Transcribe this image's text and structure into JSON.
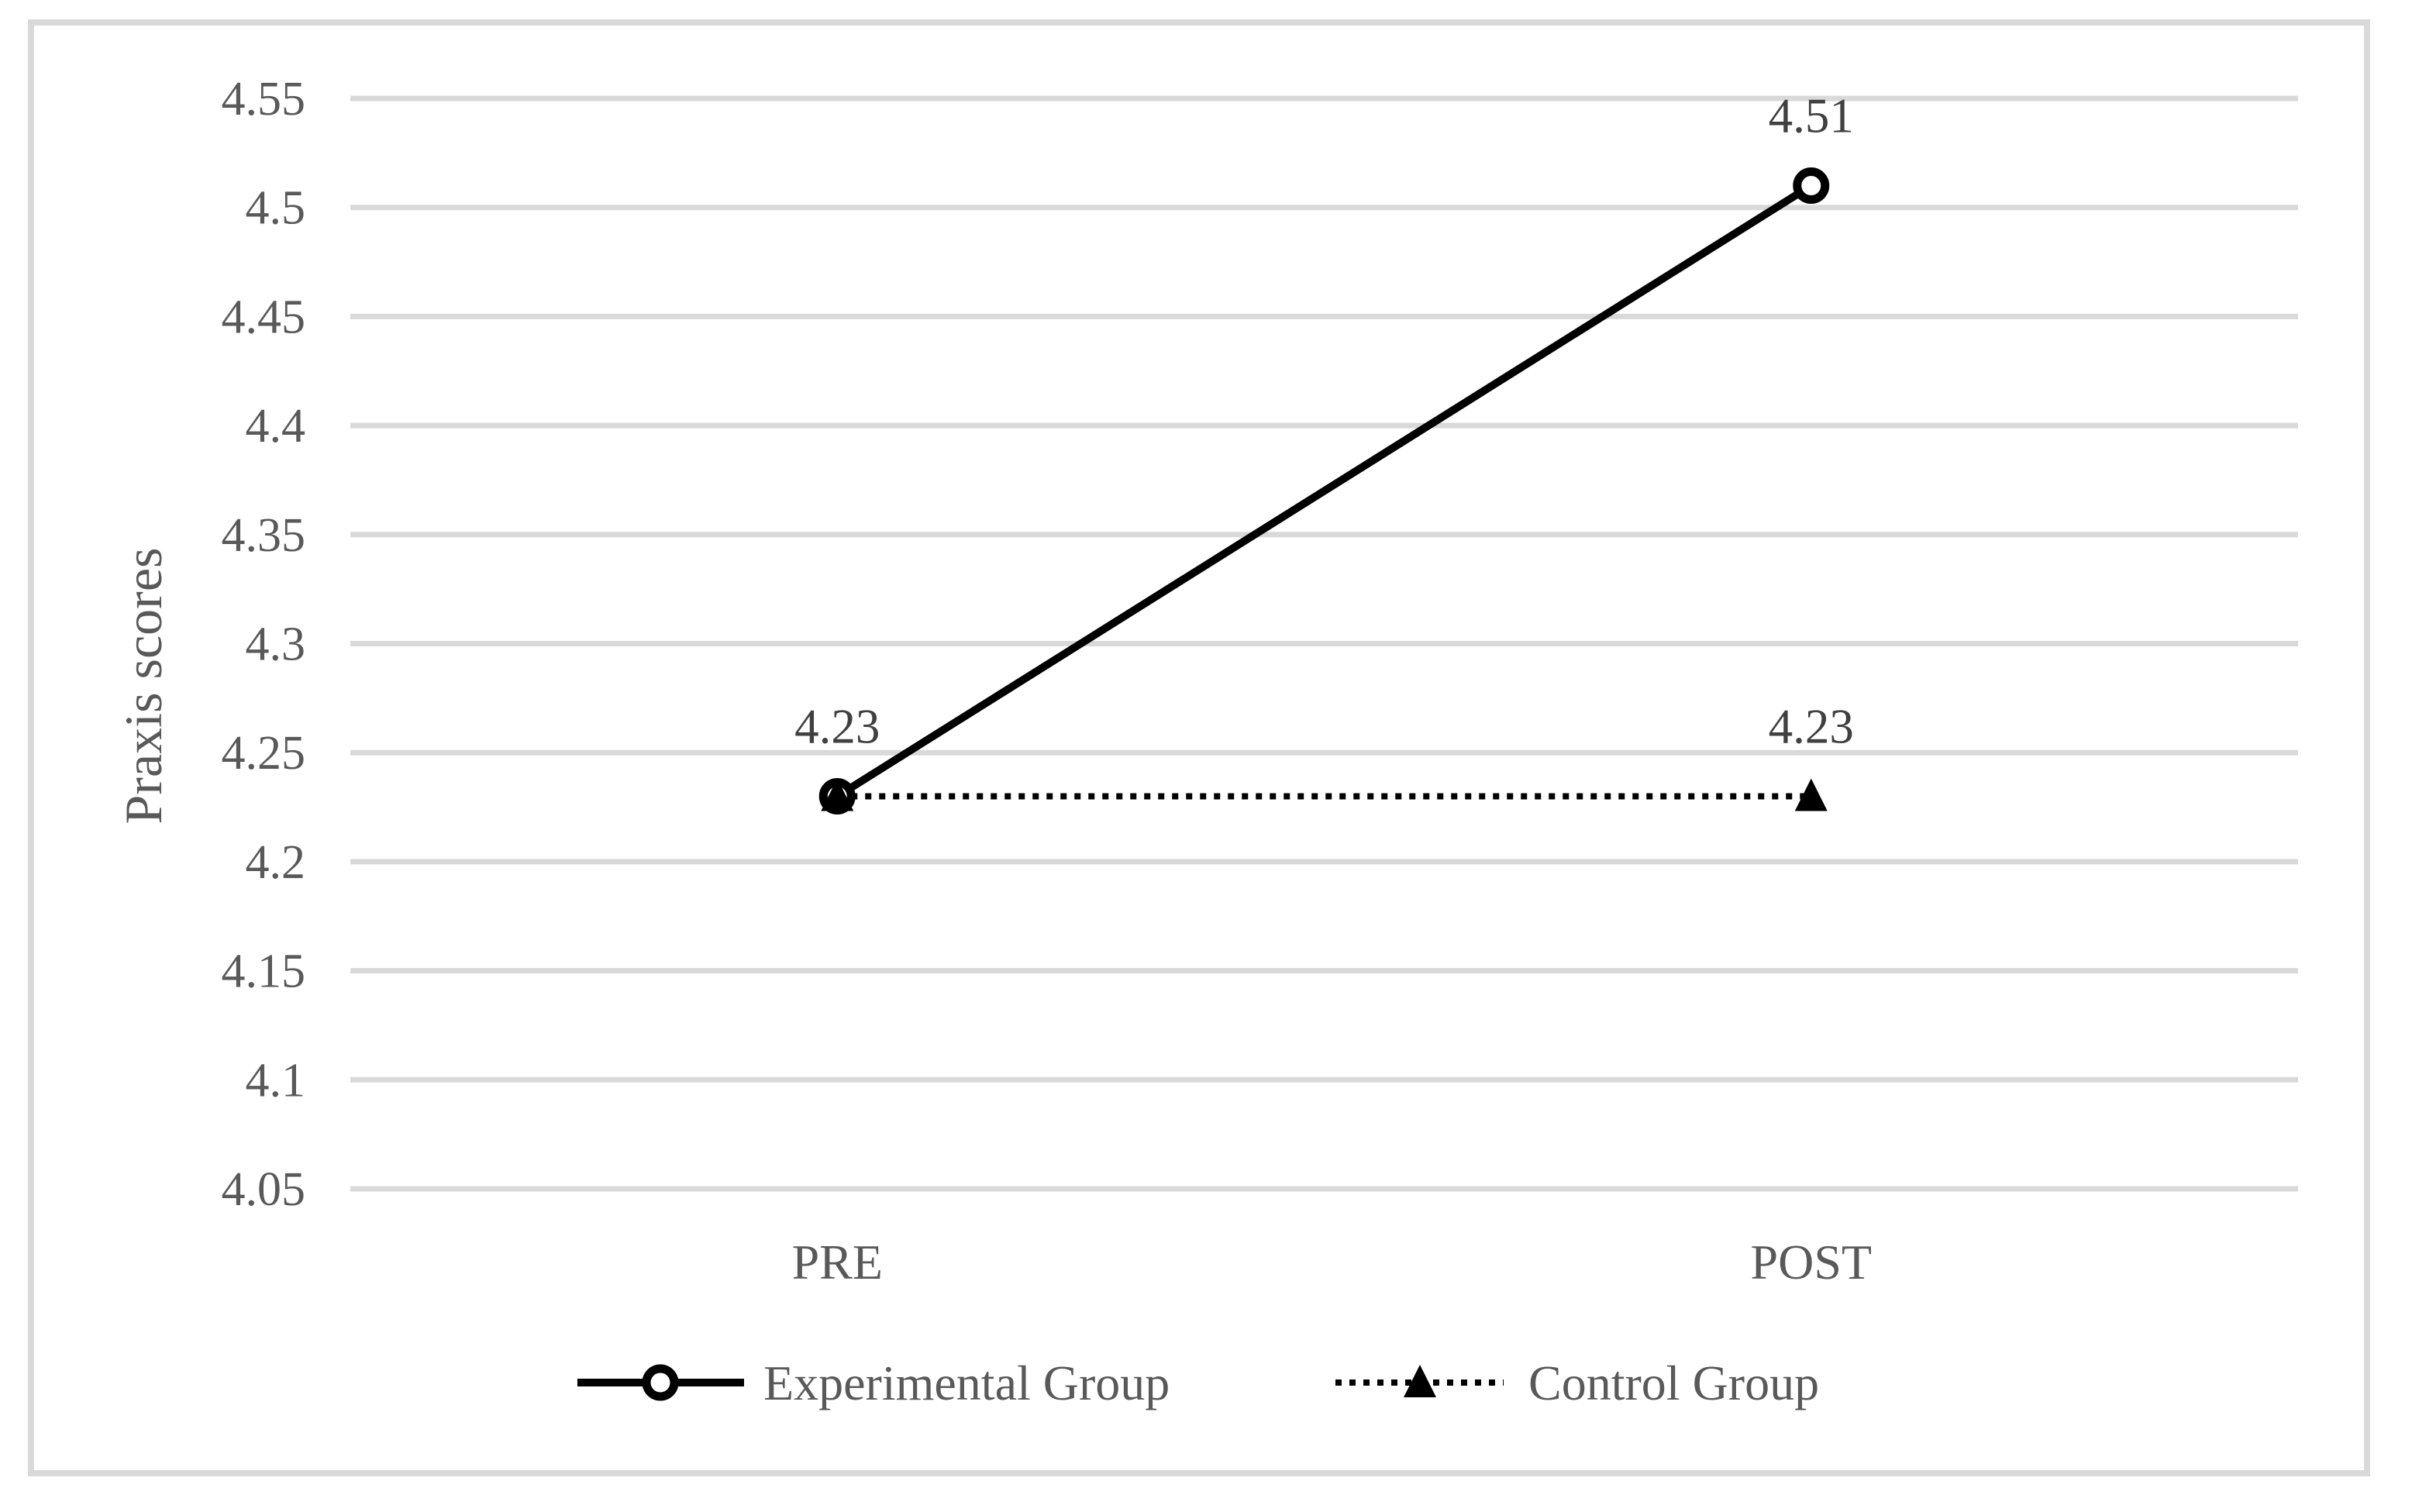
{
  "chart_data": {
    "type": "line",
    "title": "",
    "xlabel": "",
    "ylabel": "Praxis scores",
    "categories": [
      "PRE",
      "POST"
    ],
    "series": [
      {
        "name": "Experimental Group",
        "values": [
          4.23,
          4.51
        ],
        "labels": [
          "4.23",
          "4.51"
        ],
        "marker": "open-circle",
        "line_style": "solid",
        "color": "#000000"
      },
      {
        "name": "Control Group",
        "values": [
          4.23,
          4.23
        ],
        "labels": [
          null,
          "4.23"
        ],
        "marker": "filled-triangle",
        "line_style": "dotted",
        "color": "#000000"
      }
    ],
    "yticks": [
      {
        "v": 4.05,
        "label": "4.05"
      },
      {
        "v": 4.1,
        "label": "4.1"
      },
      {
        "v": 4.15,
        "label": "4.15"
      },
      {
        "v": 4.2,
        "label": "4.2"
      },
      {
        "v": 4.25,
        "label": "4.25"
      },
      {
        "v": 4.3,
        "label": "4.3"
      },
      {
        "v": 4.35,
        "label": "4.35"
      },
      {
        "v": 4.4,
        "label": "4.4"
      },
      {
        "v": 4.45,
        "label": "4.45"
      },
      {
        "v": 4.5,
        "label": "4.5"
      },
      {
        "v": 4.55,
        "label": "4.55"
      }
    ],
    "ylim": [
      4.05,
      4.55
    ],
    "grid": "horizontal",
    "legend_position": "bottom",
    "colors": {
      "gridline": "#d9d9d9",
      "frame": "#d9d9d9",
      "axis_text": "#595959",
      "data_label": "#404040",
      "background": "#ffffff"
    }
  }
}
